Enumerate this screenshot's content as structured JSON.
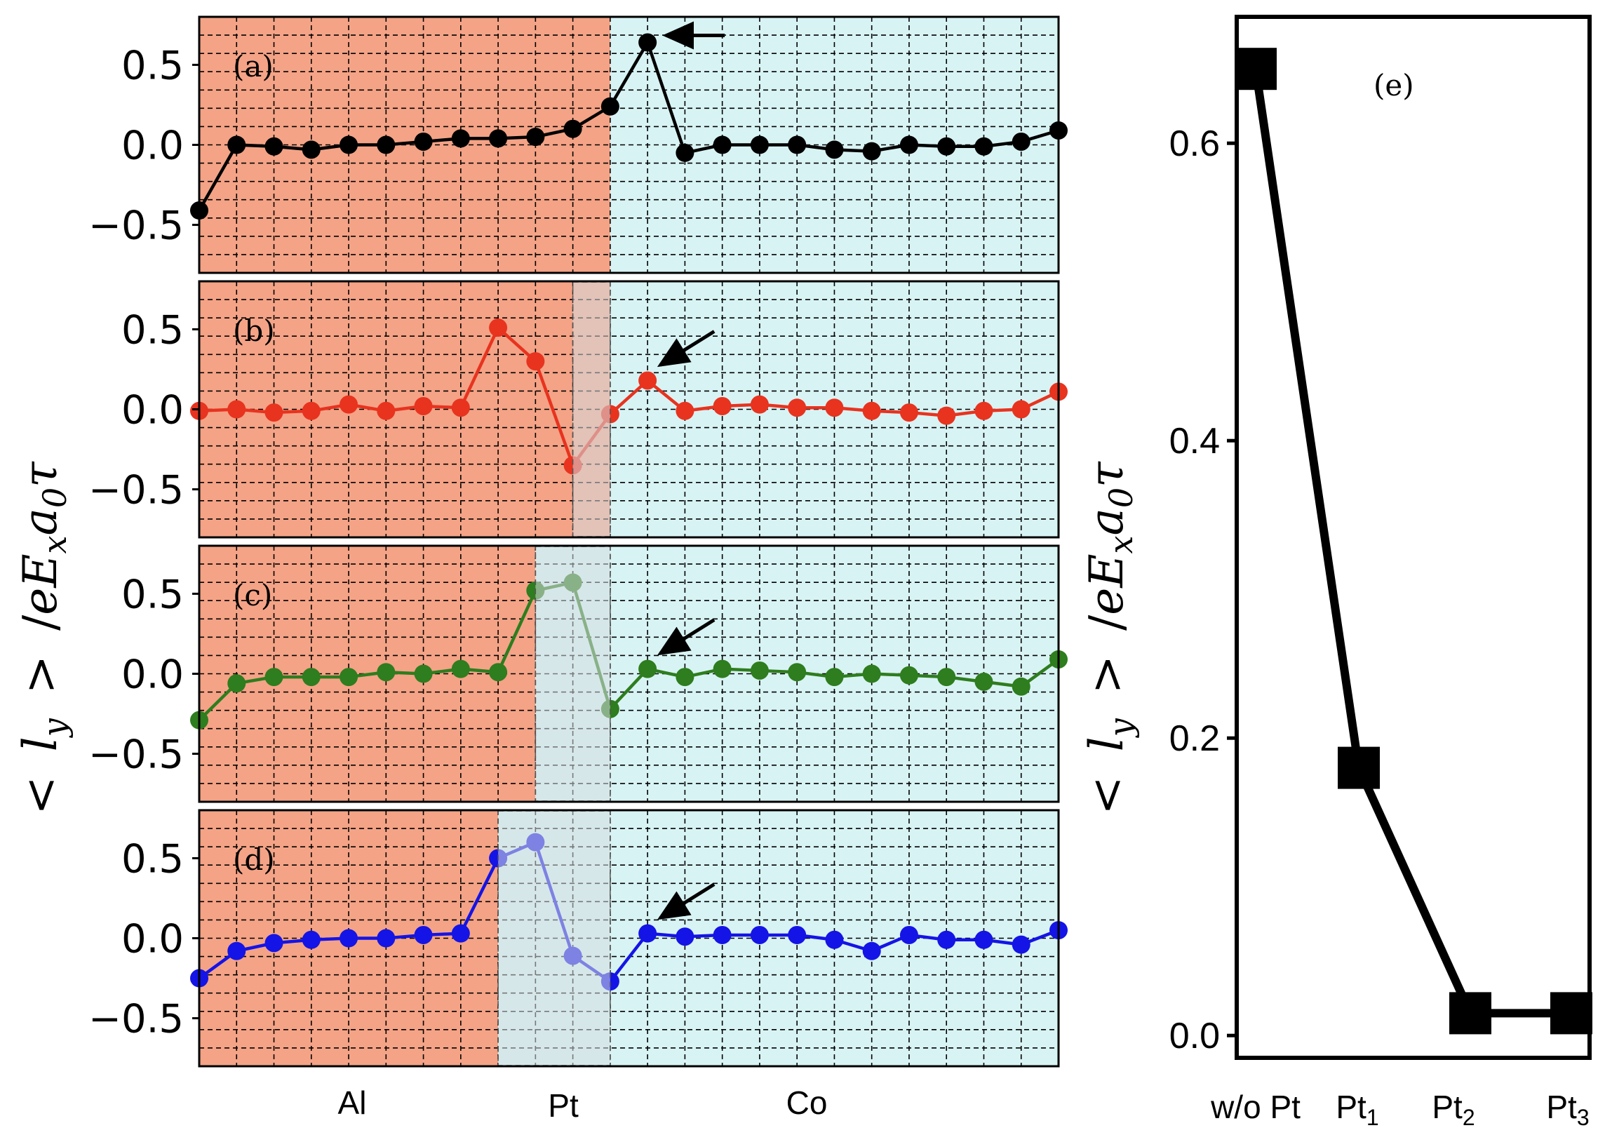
{
  "chart_data": [
    {
      "type": "line",
      "panel_label": "(a)",
      "color": "#000000",
      "ylim": [
        -0.8,
        0.8
      ],
      "yticks": [
        "0.5",
        "0.0",
        "−0.5"
      ],
      "yticks_values": [
        0.5,
        0.0,
        -0.5
      ],
      "xlim": [
        0,
        23
      ],
      "x": [
        0,
        1,
        2,
        3,
        4,
        5,
        6,
        7,
        8,
        9,
        10,
        11,
        12,
        13,
        14,
        15,
        16,
        17,
        18,
        19,
        20,
        21,
        22,
        23
      ],
      "values": [
        -0.41,
        0.0,
        -0.01,
        -0.03,
        0.0,
        0.0,
        0.02,
        0.04,
        0.04,
        0.05,
        0.1,
        0.24,
        0.64,
        -0.05,
        0.0,
        0.0,
        0.0,
        -0.03,
        -0.04,
        0.0,
        -0.01,
        -0.01,
        0.02,
        0.09
      ],
      "regions": {
        "al_end": 11,
        "pt_range": null
      },
      "arrow_target_index": 12
    },
    {
      "type": "line",
      "panel_label": "(b)",
      "color": "#e8331f",
      "ylim": [
        -0.8,
        0.8
      ],
      "yticks": [
        "0.5",
        "0.0",
        "−0.5"
      ],
      "yticks_values": [
        0.5,
        0.0,
        -0.5
      ],
      "xlim": [
        0,
        23
      ],
      "x": [
        0,
        1,
        2,
        3,
        4,
        5,
        6,
        7,
        8,
        9,
        10,
        11,
        12,
        13,
        14,
        15,
        16,
        17,
        18,
        19,
        20,
        21,
        22,
        23
      ],
      "values": [
        -0.01,
        0.0,
        -0.02,
        -0.01,
        0.03,
        -0.01,
        0.02,
        0.01,
        0.51,
        0.3,
        -0.35,
        -0.03,
        0.18,
        -0.01,
        0.02,
        0.03,
        0.01,
        0.01,
        -0.01,
        -0.02,
        -0.04,
        -0.01,
        0.0,
        0.11
      ],
      "regions": {
        "al_end": 11,
        "pt_range": [
          10,
          11
        ]
      },
      "arrow_target_index": 12
    },
    {
      "type": "line",
      "panel_label": "(c)",
      "color": "#2e7d1e",
      "ylim": [
        -0.8,
        0.8
      ],
      "yticks": [
        "0.5",
        "0.0",
        "−0.5"
      ],
      "yticks_values": [
        0.5,
        0.0,
        -0.5
      ],
      "xlim": [
        0,
        23
      ],
      "x": [
        0,
        1,
        2,
        3,
        4,
        5,
        6,
        7,
        8,
        9,
        10,
        11,
        12,
        13,
        14,
        15,
        16,
        17,
        18,
        19,
        20,
        21,
        22,
        23
      ],
      "values": [
        -0.29,
        -0.06,
        -0.02,
        -0.02,
        -0.02,
        0.01,
        0.0,
        0.03,
        0.01,
        0.52,
        0.57,
        -0.22,
        0.03,
        -0.02,
        0.03,
        0.02,
        0.01,
        -0.02,
        0.0,
        -0.01,
        -0.02,
        -0.05,
        -0.08,
        0.09
      ],
      "regions": {
        "al_end": 9,
        "pt_range": [
          9,
          11
        ]
      },
      "arrow_target_index": 12
    },
    {
      "type": "line",
      "panel_label": "(d)",
      "color": "#1414e6",
      "ylim": [
        -0.8,
        0.8
      ],
      "yticks": [
        "0.5",
        "0.0",
        "−0.5"
      ],
      "yticks_values": [
        0.5,
        0.0,
        -0.5
      ],
      "xlim": [
        0,
        23
      ],
      "x": [
        0,
        1,
        2,
        3,
        4,
        5,
        6,
        7,
        8,
        9,
        10,
        11,
        12,
        13,
        14,
        15,
        16,
        17,
        18,
        19,
        20,
        21,
        22,
        23
      ],
      "values": [
        -0.25,
        -0.08,
        -0.03,
        -0.01,
        0.0,
        0.0,
        0.02,
        0.03,
        0.5,
        0.6,
        -0.11,
        -0.27,
        0.03,
        0.01,
        0.02,
        0.02,
        0.02,
        -0.01,
        -0.08,
        0.02,
        -0.01,
        -0.01,
        -0.04,
        0.05
      ],
      "regions": {
        "al_end": 8,
        "pt_range": [
          8,
          11
        ]
      },
      "arrow_target_index": 12
    },
    {
      "type": "line",
      "panel_label": "(e)",
      "color": "#000000",
      "categories": [
        "w/o Pt",
        "Pt1",
        "Pt2",
        "Pt3"
      ],
      "x_positions": [
        0,
        1,
        2,
        3
      ],
      "values": [
        0.65,
        0.18,
        0.015,
        0.015
      ],
      "ylim": [
        -0.015,
        0.685
      ],
      "yticks": [
        "0.6",
        "0.4",
        "0.2",
        "0.0"
      ],
      "yticks_values": [
        0.6,
        0.4,
        0.2,
        0.0
      ],
      "ylabel": "< l_y > /eE_x a_0 τ"
    }
  ],
  "labels": {
    "ylabel_main": "< l_y > /eE_x a_0 τ",
    "ylabel_main_lt": "<",
    "ylabel_main_l": "l",
    "ylabel_main_y": "y",
    "ylabel_main_gt": ">",
    "ylabel_main_slash": "/",
    "ylabel_main_e": "e",
    "ylabel_main_E": "E",
    "ylabel_main_x": "x",
    "ylabel_main_a": "a",
    "ylabel_main_0": "0",
    "ylabel_main_tau": "τ",
    "region_al": "Al",
    "region_pt": "Pt",
    "region_co": "Co",
    "e_cat_0": "w/o Pt",
    "e_cat_1_base": "Pt",
    "e_cat_1_sub": "1",
    "e_cat_2_base": "Pt",
    "e_cat_2_sub": "2",
    "e_cat_3_base": "Pt",
    "e_cat_3_sub": "3"
  },
  "colors": {
    "al_region": "#f4a386",
    "co_region": "#d8f3f4",
    "pt_region": "#d5dde0"
  }
}
